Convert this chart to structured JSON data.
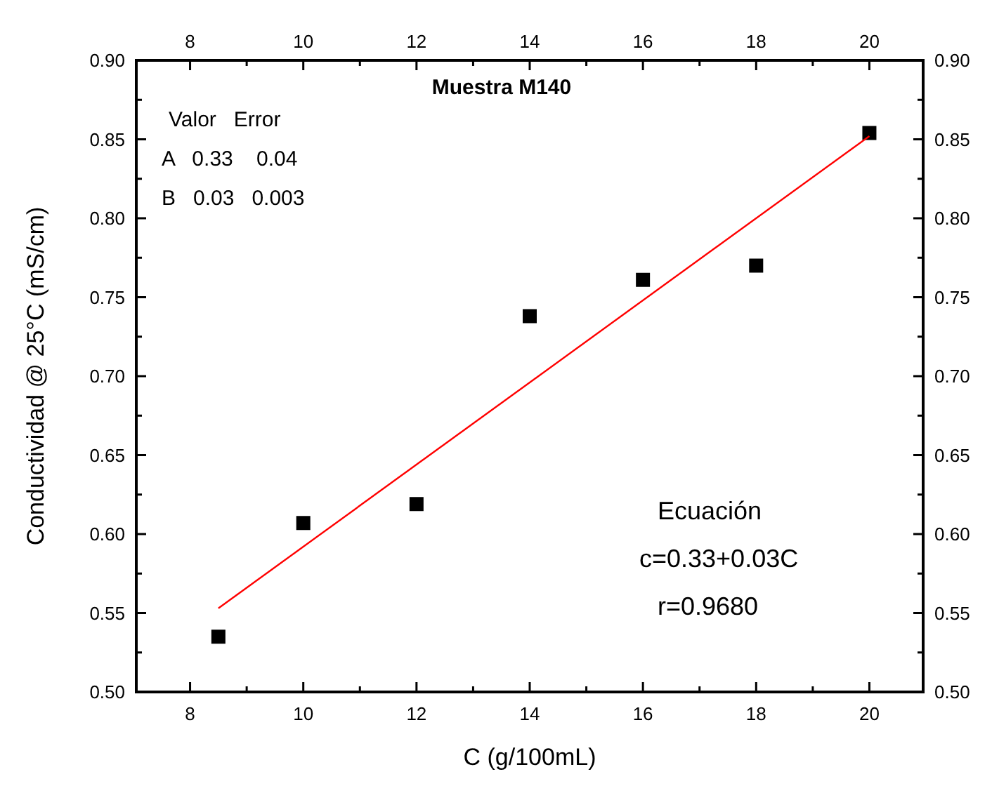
{
  "chart_data": {
    "type": "scatter",
    "title": "Muestra M140",
    "xlabel": "C (g/100mL)",
    "ylabel": "Conductividad @ 25°C (mS/cm)",
    "annotations": [
      "Valor   Error",
      "A   0.33    0.04",
      "B   0.03   0.003",
      "Ecuación",
      "c=0.33+0.03C",
      "r=0.9680"
    ],
    "series": [
      {
        "color": "#000000",
        "marker": "square",
        "x": [
          8.5,
          10,
          12,
          14,
          16,
          18,
          20
        ],
        "values": [
          0.535,
          0.607,
          0.619,
          0.738,
          0.761,
          0.77,
          0.854
        ]
      },
      {
        "type": "line",
        "color": "#ff0000",
        "marker": "none",
        "x": [
          8.5,
          20
        ],
        "values": [
          0.553,
          0.852
        ]
      }
    ],
    "xlim": [
      7.05,
      20.95
    ],
    "xticks": [
      8,
      {
        "value": 9,
        "label": null
      },
      10,
      {
        "value": 11,
        "label": null
      },
      12,
      {
        "value": 13,
        "label": null
      },
      14,
      {
        "value": 15,
        "label": null
      },
      16,
      {
        "value": 17,
        "label": null
      },
      18,
      {
        "value": 19,
        "label": null
      },
      20
    ],
    "x2lim": [
      7.05,
      20.95
    ],
    "x2ticks": [
      8,
      {
        "value": 9,
        "label": null
      },
      10,
      {
        "value": 11,
        "label": null
      },
      12,
      {
        "value": 13,
        "label": null
      },
      14,
      {
        "value": 15,
        "label": null
      },
      16,
      {
        "value": 17,
        "label": null
      },
      18,
      {
        "value": 19,
        "label": null
      },
      20
    ],
    "ylim": [
      0.5,
      0.9
    ],
    "yticks": [
      {
        "value": 0.5,
        "label": "0.50"
      },
      {
        "value": 0.525,
        "label": null
      },
      {
        "value": 0.55,
        "label": "0.55"
      },
      {
        "value": 0.575,
        "label": null
      },
      {
        "value": 0.6,
        "label": "0.60"
      },
      {
        "value": 0.625,
        "label": null
      },
      {
        "value": 0.65,
        "label": "0.65"
      },
      {
        "value": 0.675,
        "label": null
      },
      {
        "value": 0.7,
        "label": "0.70"
      },
      {
        "value": 0.725,
        "label": null
      },
      {
        "value": 0.75,
        "label": "0.75"
      },
      {
        "value": 0.775,
        "label": null
      },
      {
        "value": 0.8,
        "label": "0.80"
      },
      {
        "value": 0.825,
        "label": null
      },
      {
        "value": 0.85,
        "label": "0.85"
      },
      {
        "value": 0.875,
        "label": null
      },
      {
        "value": 0.9,
        "label": "0.90"
      }
    ],
    "y2lim": [
      0.5,
      0.9
    ],
    "y2ticks": [
      {
        "value": 0.5,
        "label": "0.50"
      },
      {
        "value": 0.525,
        "label": null
      },
      {
        "value": 0.55,
        "label": "0.55"
      },
      {
        "value": 0.575,
        "label": null
      },
      {
        "value": 0.6,
        "label": "0.60"
      },
      {
        "value": 0.625,
        "label": null
      },
      {
        "value": 0.65,
        "label": "0.65"
      },
      {
        "value": 0.675,
        "label": null
      },
      {
        "value": 0.7,
        "label": "0.70"
      },
      {
        "value": 0.725,
        "label": null
      },
      {
        "value": 0.75,
        "label": "0.75"
      },
      {
        "value": 0.775,
        "label": null
      },
      {
        "value": 0.8,
        "label": "0.80"
      },
      {
        "value": 0.825,
        "label": null
      },
      {
        "value": 0.85,
        "label": "0.85"
      },
      {
        "value": 0.875,
        "label": null
      },
      {
        "value": 0.9,
        "label": "0.90"
      }
    ],
    "grid": false
  }
}
